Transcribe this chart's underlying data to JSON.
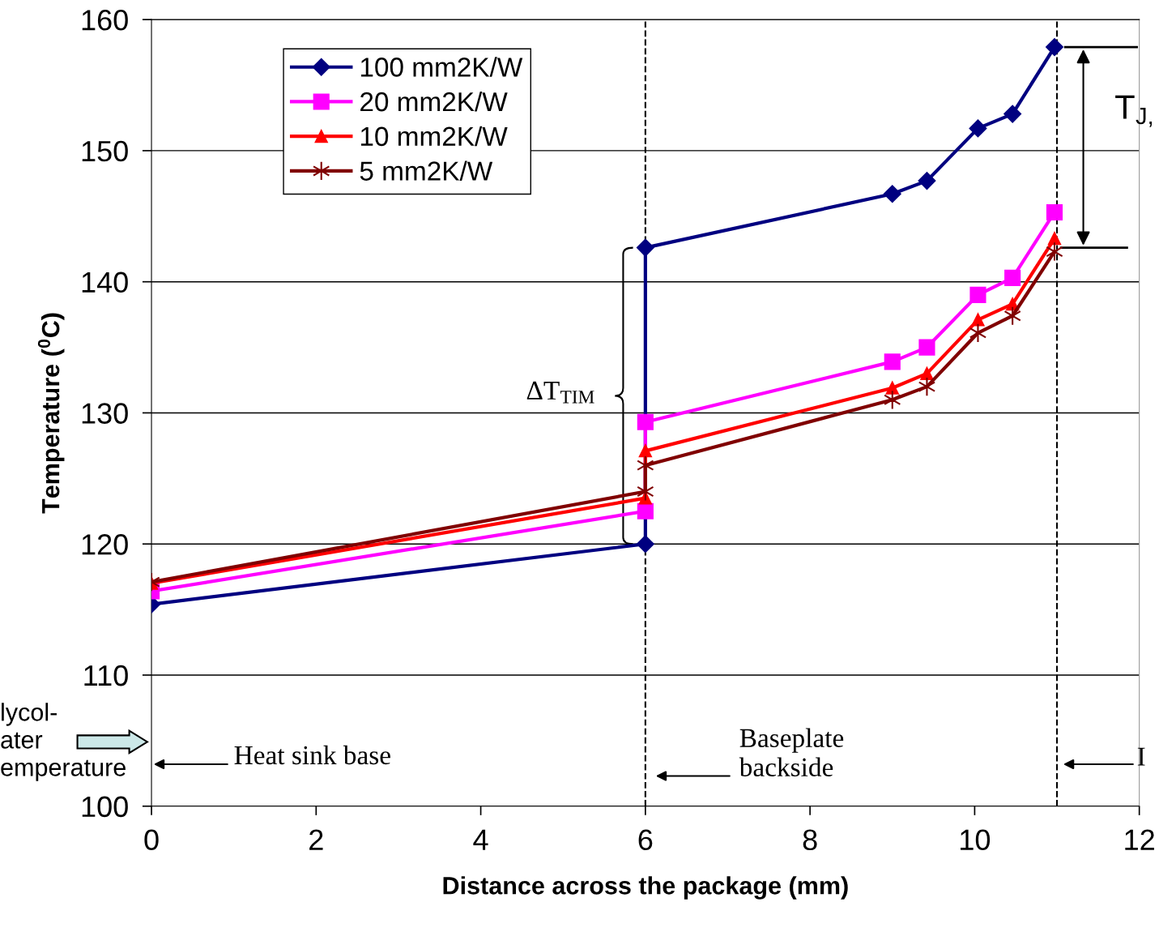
{
  "chart_data": {
    "type": "line",
    "xlabel": "Distance across the package (mm)",
    "ylabel": "Temperature ($^{0}$C)",
    "x": [
      0,
      6,
      6,
      9,
      9.42,
      10.04,
      10.46,
      10.97
    ],
    "series": [
      {
        "name": "100 mm2K/W",
        "color": "#000080",
        "marker": "diamond",
        "values": [
          115.4,
          120.0,
          142.6,
          146.7,
          147.7,
          151.7,
          152.8,
          157.9
        ]
      },
      {
        "name": "20 mm2K/W",
        "color": "#ff00ff",
        "marker": "square",
        "values": [
          116.4,
          122.5,
          129.3,
          133.9,
          135.0,
          139.0,
          140.3,
          145.3
        ]
      },
      {
        "name": "10 mm2K/W",
        "color": "#ff0000",
        "marker": "triangle",
        "values": [
          117.0,
          123.5,
          127.1,
          131.9,
          133.0,
          137.1,
          138.3,
          143.3
        ]
      },
      {
        "name": "5 mm2K/W",
        "color": "#800000",
        "marker": "cross",
        "values": [
          117.1,
          124.0,
          126.0,
          131.0,
          132.0,
          136.1,
          137.4,
          142.3
        ]
      }
    ],
    "xlim": [
      0,
      12
    ],
    "xticks": [
      0,
      2,
      4,
      6,
      8,
      10,
      12
    ],
    "ylim": [
      100,
      160
    ],
    "yticks": [
      100,
      110,
      120,
      130,
      140,
      150,
      160
    ],
    "grid": "y",
    "legend": "top left",
    "line_style": "solid",
    "ref_lines": [
      {
        "axis": "x",
        "value": 6,
        "label": null,
        "color": "#000000",
        "line_style": "dashed"
      },
      {
        "axis": "x",
        "value": 11,
        "label": null,
        "color": "#000000",
        "line_style": "dashed"
      }
    ],
    "annotations": [
      "ΔT$_{TIM}$",
      "T$_{J,}$",
      "Heat sink base",
      "Baseplate\nbackside",
      "I",
      "lycol-\nater\nemperature"
    ]
  }
}
